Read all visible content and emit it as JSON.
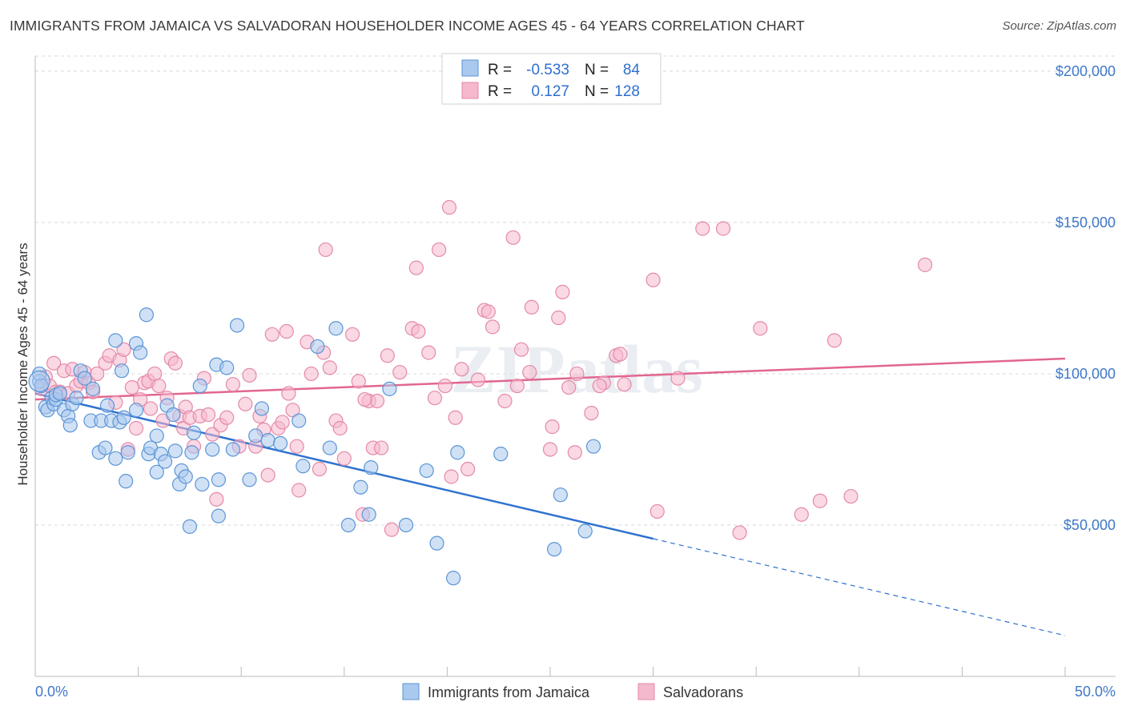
{
  "title": "IMMIGRANTS FROM JAMAICA VS SALVADORAN HOUSEHOLDER INCOME AGES 45 - 64 YEARS CORRELATION CHART",
  "source": "Source: ZipAtlas.com",
  "watermark": "ZIPatlas",
  "colors": {
    "blue_fill": "#a9c9ef",
    "blue_stroke": "#5b95d6",
    "blue_line": "#2f72d0",
    "pink_fill": "#f5b8cd",
    "pink_stroke": "#e48aa9",
    "pink_line": "#e2668f",
    "tick_text": "#3f78c8",
    "grid": "#d8d8d8"
  },
  "stats": [
    {
      "r_label": "R =",
      "r_value": "-0.533",
      "n_label": "N =",
      "n_value": "84"
    },
    {
      "r_label": "R =",
      "r_value": "0.127",
      "n_label": "N =",
      "n_value": "128"
    }
  ],
  "chart_data": {
    "type": "scatter",
    "title": "IMMIGRANTS FROM JAMAICA VS SALVADORAN HOUSEHOLDER INCOME AGES 45 - 64 YEARS CORRELATION CHART",
    "xlabel": "",
    "ylabel": "Householder Income Ages 45 - 64 years",
    "xlim": [
      0,
      50
    ],
    "ylim": [
      0,
      205000
    ],
    "x_tick_labels": [
      "0.0%",
      "50.0%"
    ],
    "y_ticks": [
      50000,
      100000,
      150000,
      200000
    ],
    "y_tick_labels": [
      "$50,000",
      "$100,000",
      "$150,000",
      "$200,000"
    ],
    "grid": true,
    "legend_position": "bottom",
    "series": [
      {
        "name": "Immigrants from Jamaica",
        "color": "#5b95d6",
        "trend": {
          "x0": 0,
          "y0": 93500,
          "x1": 30,
          "y1": 45500,
          "dashed_to_x": 50,
          "dashed_to_y": 13500
        },
        "points": [
          [
            0.2,
            97500
          ],
          [
            0.2,
            100000
          ],
          [
            0.3,
            96000
          ],
          [
            0.5,
            89000
          ],
          [
            0.6,
            88000
          ],
          [
            0.8,
            92000
          ],
          [
            0.9,
            90000
          ],
          [
            1.0,
            91500
          ],
          [
            1.0,
            93000
          ],
          [
            1.2,
            93500
          ],
          [
            1.4,
            88000
          ],
          [
            1.6,
            86000
          ],
          [
            1.7,
            83000
          ],
          [
            1.8,
            90000
          ],
          [
            2.0,
            92000
          ],
          [
            2.2,
            101000
          ],
          [
            2.4,
            98500
          ],
          [
            2.7,
            84500
          ],
          [
            2.8,
            95000
          ],
          [
            3.1,
            74000
          ],
          [
            3.2,
            84500
          ],
          [
            3.4,
            75500
          ],
          [
            3.5,
            89500
          ],
          [
            3.7,
            84500
          ],
          [
            3.9,
            72000
          ],
          [
            3.9,
            111000
          ],
          [
            4.1,
            84000
          ],
          [
            4.2,
            101000
          ],
          [
            4.3,
            85500
          ],
          [
            4.4,
            64500
          ],
          [
            4.5,
            74000
          ],
          [
            4.9,
            88000
          ],
          [
            4.9,
            110000
          ],
          [
            5.1,
            107000
          ],
          [
            5.4,
            119500
          ],
          [
            5.5,
            73500
          ],
          [
            5.6,
            75500
          ],
          [
            5.9,
            79500
          ],
          [
            5.9,
            67500
          ],
          [
            6.1,
            73500
          ],
          [
            6.3,
            71000
          ],
          [
            6.4,
            89500
          ],
          [
            6.7,
            86500
          ],
          [
            6.8,
            74500
          ],
          [
            7.0,
            63500
          ],
          [
            7.1,
            68000
          ],
          [
            7.3,
            66000
          ],
          [
            7.5,
            49500
          ],
          [
            7.6,
            74000
          ],
          [
            7.7,
            80500
          ],
          [
            8.0,
            96000
          ],
          [
            8.1,
            63500
          ],
          [
            8.6,
            75000
          ],
          [
            8.8,
            103000
          ],
          [
            8.9,
            65000
          ],
          [
            8.9,
            53000
          ],
          [
            9.3,
            102000
          ],
          [
            9.6,
            75000
          ],
          [
            9.8,
            116000
          ],
          [
            10.4,
            65000
          ],
          [
            10.7,
            79500
          ],
          [
            11.0,
            88500
          ],
          [
            11.3,
            78000
          ],
          [
            11.9,
            77000
          ],
          [
            12.8,
            84500
          ],
          [
            13.7,
            109000
          ],
          [
            14.3,
            75500
          ],
          [
            14.6,
            115000
          ],
          [
            15.2,
            50000
          ],
          [
            15.8,
            62500
          ],
          [
            16.2,
            53500
          ],
          [
            16.3,
            69000
          ],
          [
            17.2,
            95000
          ],
          [
            18.0,
            50000
          ],
          [
            19.0,
            68000
          ],
          [
            19.5,
            44000
          ],
          [
            20.3,
            32500
          ],
          [
            20.5,
            74000
          ],
          [
            22.6,
            73500
          ],
          [
            25.2,
            42000
          ],
          [
            26.7,
            48000
          ],
          [
            27.1,
            76000
          ],
          [
            25.5,
            60000
          ],
          [
            13.0,
            69500
          ]
        ]
      },
      {
        "name": "Salvadorans",
        "color": "#e48aa9",
        "trend": {
          "x0": 0,
          "y0": 91500,
          "x1": 50,
          "y1": 105000
        },
        "points": [
          [
            0.3,
            95000
          ],
          [
            0.5,
            99000
          ],
          [
            0.7,
            96000
          ],
          [
            0.9,
            103500
          ],
          [
            1.0,
            94000
          ],
          [
            1.2,
            94000
          ],
          [
            1.4,
            101000
          ],
          [
            1.6,
            93500
          ],
          [
            1.8,
            101500
          ],
          [
            2.0,
            96000
          ],
          [
            2.2,
            97500
          ],
          [
            2.4,
            100500
          ],
          [
            2.6,
            97000
          ],
          [
            2.8,
            94000
          ],
          [
            3.0,
            100000
          ],
          [
            3.4,
            103500
          ],
          [
            3.6,
            106000
          ],
          [
            3.9,
            90500
          ],
          [
            4.1,
            104500
          ],
          [
            4.3,
            108000
          ],
          [
            4.5,
            75000
          ],
          [
            4.7,
            95500
          ],
          [
            4.9,
            82000
          ],
          [
            5.1,
            91500
          ],
          [
            5.3,
            97000
          ],
          [
            5.5,
            97500
          ],
          [
            5.6,
            88500
          ],
          [
            5.8,
            100000
          ],
          [
            6.0,
            96000
          ],
          [
            6.2,
            84500
          ],
          [
            6.4,
            92000
          ],
          [
            6.6,
            105000
          ],
          [
            6.8,
            103500
          ],
          [
            7.0,
            86000
          ],
          [
            7.2,
            82000
          ],
          [
            7.3,
            89000
          ],
          [
            7.5,
            85500
          ],
          [
            7.7,
            76000
          ],
          [
            8.0,
            86000
          ],
          [
            8.2,
            98500
          ],
          [
            8.4,
            86500
          ],
          [
            8.6,
            80000
          ],
          [
            8.8,
            58500
          ],
          [
            9.0,
            83000
          ],
          [
            9.3,
            85500
          ],
          [
            9.6,
            96500
          ],
          [
            9.9,
            76000
          ],
          [
            10.2,
            90000
          ],
          [
            10.4,
            99500
          ],
          [
            10.7,
            76000
          ],
          [
            10.9,
            86000
          ],
          [
            11.1,
            81500
          ],
          [
            11.3,
            66500
          ],
          [
            11.5,
            113000
          ],
          [
            11.8,
            82000
          ],
          [
            12.0,
            84000
          ],
          [
            12.2,
            114000
          ],
          [
            12.5,
            88000
          ],
          [
            12.7,
            76000
          ],
          [
            12.8,
            61500
          ],
          [
            13.2,
            110500
          ],
          [
            13.4,
            100000
          ],
          [
            13.8,
            68500
          ],
          [
            14.0,
            107000
          ],
          [
            14.3,
            102000
          ],
          [
            14.6,
            84500
          ],
          [
            14.8,
            82000
          ],
          [
            15.0,
            72000
          ],
          [
            15.4,
            113000
          ],
          [
            15.7,
            97500
          ],
          [
            15.9,
            53500
          ],
          [
            16.2,
            91000
          ],
          [
            16.4,
            75500
          ],
          [
            16.6,
            91000
          ],
          [
            16.8,
            75500
          ],
          [
            17.1,
            106000
          ],
          [
            17.3,
            48500
          ],
          [
            17.7,
            100500
          ],
          [
            18.3,
            115000
          ],
          [
            18.6,
            114000
          ],
          [
            19.1,
            107000
          ],
          [
            19.4,
            92000
          ],
          [
            19.9,
            96000
          ],
          [
            20.2,
            66000
          ],
          [
            20.4,
            85500
          ],
          [
            20.7,
            101500
          ],
          [
            21.0,
            68500
          ],
          [
            21.5,
            98000
          ],
          [
            21.8,
            121000
          ],
          [
            22.2,
            115500
          ],
          [
            22.8,
            91000
          ],
          [
            23.2,
            145000
          ],
          [
            23.4,
            96000
          ],
          [
            23.6,
            108000
          ],
          [
            24.1,
            122000
          ],
          [
            25.1,
            82500
          ],
          [
            25.4,
            118500
          ],
          [
            25.6,
            127000
          ],
          [
            25.9,
            95500
          ],
          [
            26.2,
            74000
          ],
          [
            27.0,
            87000
          ],
          [
            27.6,
            97000
          ],
          [
            28.2,
            106000
          ],
          [
            28.6,
            96500
          ],
          [
            30.2,
            54500
          ],
          [
            31.2,
            98500
          ],
          [
            32.4,
            148000
          ],
          [
            33.4,
            148000
          ],
          [
            34.2,
            47500
          ],
          [
            35.2,
            115000
          ],
          [
            37.2,
            53500
          ],
          [
            38.1,
            58000
          ],
          [
            38.8,
            111000
          ],
          [
            39.6,
            59500
          ],
          [
            43.2,
            136000
          ],
          [
            20.1,
            155000
          ],
          [
            19.6,
            141000
          ],
          [
            18.5,
            135000
          ],
          [
            14.1,
            141000
          ],
          [
            24.0,
            100500
          ],
          [
            26.3,
            100000
          ],
          [
            27.4,
            96000
          ],
          [
            28.4,
            106500
          ],
          [
            30.0,
            131000
          ],
          [
            22.0,
            120500
          ],
          [
            25.0,
            75000
          ],
          [
            16.0,
            91500
          ],
          [
            12.3,
            93500
          ]
        ]
      }
    ]
  },
  "bottom_legend": [
    {
      "label": "Immigrants from Jamaica"
    },
    {
      "label": "Salvadorans"
    }
  ]
}
